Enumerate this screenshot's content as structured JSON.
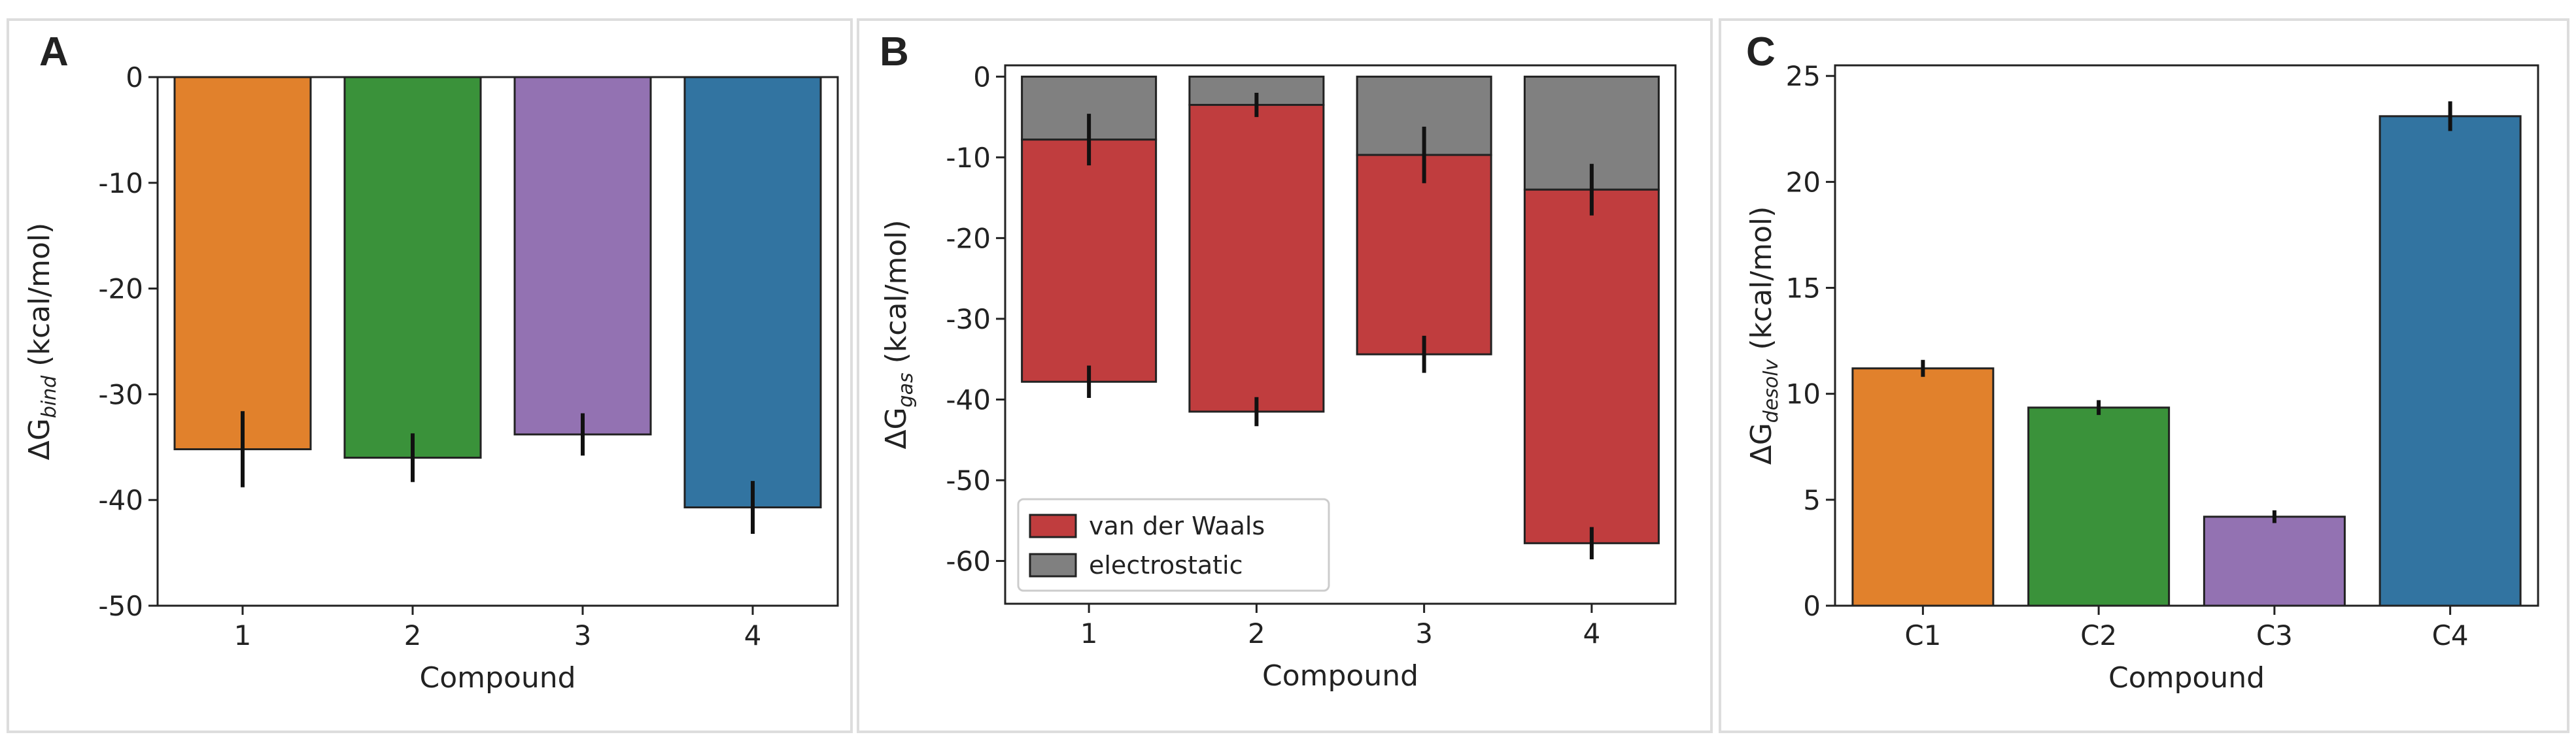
{
  "chart_data": [
    {
      "type": "bar",
      "panel_label": "A",
      "categories": [
        "1",
        "2",
        "3",
        "4"
      ],
      "values": [
        -35.2,
        -36.0,
        -33.8,
        -40.7
      ],
      "errors": [
        3.6,
        2.3,
        2.0,
        2.5
      ],
      "colors": [
        "#e1812c",
        "#3a923a",
        "#9372b2",
        "#3274a1"
      ],
      "ylim": [
        -50,
        0
      ],
      "yticks": [
        -50,
        -40,
        -30,
        -20,
        -10,
        0
      ],
      "xlabel": "Compound",
      "ylabel": [
        "ΔG",
        "bind",
        "(kcal/mol)"
      ]
    },
    {
      "type": "stacked_bar",
      "panel_label": "B",
      "categories": [
        "1",
        "2",
        "3",
        "4"
      ],
      "series": [
        {
          "name": "electrostatic",
          "color": "#808080",
          "values": [
            -7.8,
            -3.5,
            -9.7,
            -14.0
          ],
          "errors": [
            3.2,
            1.5,
            3.5,
            3.2
          ]
        },
        {
          "name": "van der Waals",
          "color": "#c03d3e",
          "values": [
            -30.0,
            -38.0,
            -24.7,
            -43.8
          ],
          "errors": [
            2.0,
            1.8,
            2.3,
            2.0
          ]
        }
      ],
      "legend_order": [
        1,
        0
      ],
      "legend": "lower left",
      "ylim": [
        -65.3,
        1.4
      ],
      "yticks": [
        -60,
        -50,
        -40,
        -30,
        -20,
        -10,
        0
      ],
      "xlabel": "Compound",
      "ylabel": [
        "ΔG",
        "gas",
        "(kcal/mol)"
      ]
    },
    {
      "type": "bar",
      "panel_label": "C",
      "categories": [
        "C1",
        "C2",
        "C3",
        "C4"
      ],
      "values": [
        11.2,
        9.35,
        4.2,
        23.1
      ],
      "errors": [
        0.4,
        0.35,
        0.3,
        0.7
      ],
      "colors": [
        "#e1812c",
        "#3a923a",
        "#9372b2",
        "#3274a1"
      ],
      "ylim": [
        0,
        25.5
      ],
      "yticks": [
        0,
        5,
        10,
        15,
        20,
        25
      ],
      "xlabel": "Compound",
      "ylabel": [
        "ΔG",
        "desolv",
        "(kcal/mol)"
      ]
    }
  ]
}
